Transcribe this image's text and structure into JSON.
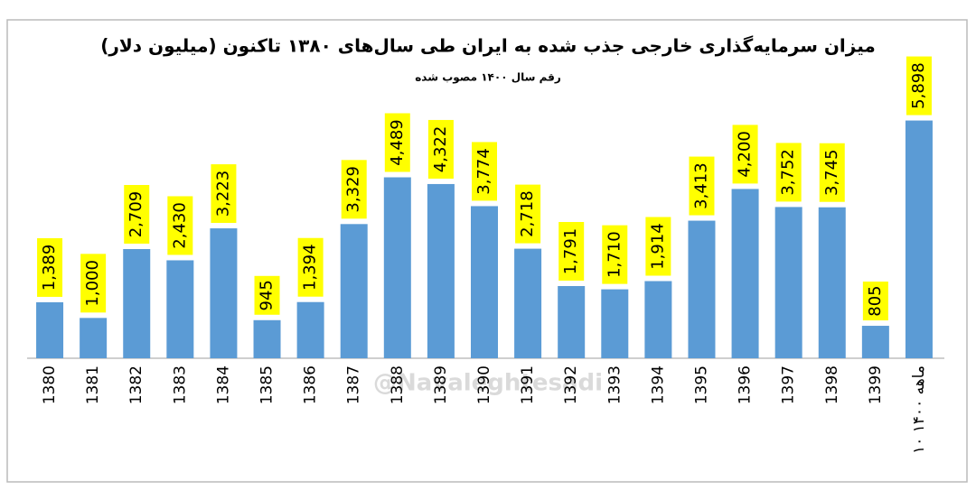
{
  "chart_data": {
    "type": "bar",
    "title": "میزان سرمایه‌گذاری خارجی جذب شده به ایران طی سال‌های ۱۳۸۰ تاکنون (میلیون دلار)",
    "subtitle": "رقم سال ۱۴۰۰ مصوب شده",
    "watermark": "@Navaleghtesadi",
    "categories": [
      "1380",
      "1381",
      "1382",
      "1383",
      "1384",
      "1385",
      "1386",
      "1387",
      "1388",
      "1389",
      "1390",
      "1391",
      "1392",
      "1393",
      "1394",
      "1395",
      "1396",
      "1397",
      "1398",
      "1399",
      "۱۰ ماهه ۱۴۰۰"
    ],
    "values": [
      1389,
      1000,
      2709,
      2430,
      3223,
      945,
      1394,
      3329,
      4489,
      4322,
      3774,
      2718,
      1791,
      1710,
      1914,
      3413,
      4200,
      3752,
      3745,
      805,
      5898
    ],
    "value_labels": [
      "1,389",
      "1,000",
      "2,709",
      "2,430",
      "3,223",
      "945",
      "1,394",
      "3,329",
      "4,489",
      "4,322",
      "3,774",
      "2,718",
      "1,791",
      "1,710",
      "1,914",
      "3,413",
      "4,200",
      "3,752",
      "3,745",
      "805",
      "5,898"
    ],
    "color": "#5b9bd5",
    "label_color": "#ffff00",
    "ylim": [
      0,
      6000
    ]
  }
}
